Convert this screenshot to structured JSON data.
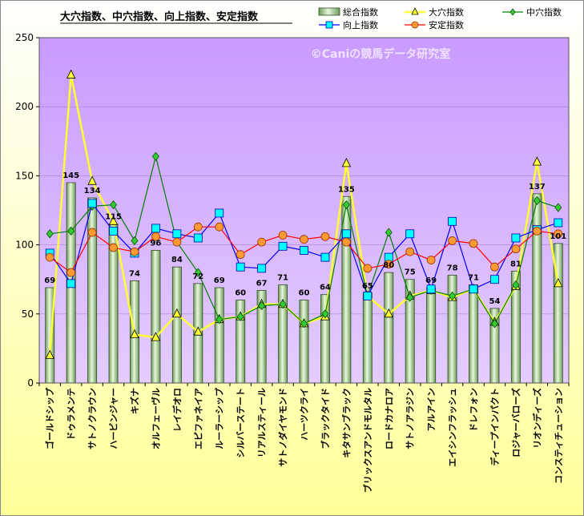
{
  "chart_data": {
    "type": "bar",
    "title": "大穴指数、中穴指数、向上指数、安定指数",
    "watermark": "©Caniの競馬データ研究室",
    "categories": [
      "ゴールドシップ",
      "ドゥラメンテ",
      "サトノクラウン",
      "ハービンジャー",
      "キズナ",
      "オルフェーヴル",
      "レイデオロ",
      "エピファネイア",
      "ルーラーシップ",
      "シルバーステート",
      "リアルスティール",
      "サトノダイヤモンド",
      "ハーツクライ",
      "ブラックタイド",
      "キタサンブラック",
      "ブリックスアンドモルタル",
      "ロードカナロア",
      "サトノアラジン",
      "アルアイン",
      "エイシンフラッシュ",
      "ドレフォン",
      "ディープインパクト",
      "ロジャーバローズ",
      "リオンディーズ",
      "コンスティチューション"
    ],
    "ylim": [
      0,
      250
    ],
    "yticks": [
      0,
      50,
      100,
      150,
      200,
      250
    ],
    "legend_position": "top-right",
    "grid": true,
    "bar_labels": [
      "69",
      "145",
      "134",
      "115",
      "74",
      "96",
      "84",
      "72",
      "69",
      "60",
      "67",
      "71",
      "60",
      "64",
      "135",
      "65",
      "80",
      "75",
      "69",
      "78",
      "71",
      "54",
      "81",
      "137",
      "101"
    ],
    "series": [
      {
        "name": "総合指数",
        "kind": "bar",
        "values": [
          69,
          145,
          134,
          115,
          74,
          96,
          84,
          72,
          69,
          60,
          67,
          71,
          60,
          64,
          135,
          65,
          80,
          75,
          69,
          78,
          71,
          54,
          81,
          137,
          101
        ]
      },
      {
        "name": "大穴指数",
        "kind": "line",
        "color": "#FFFF33",
        "marker": "triangle",
        "values": [
          20,
          223,
          146,
          117,
          35,
          33,
          50,
          37,
          46,
          48,
          57,
          57,
          43,
          48,
          159,
          63,
          50,
          63,
          67,
          62,
          68,
          44,
          70,
          160,
          72
        ]
      },
      {
        "name": "中穴指数",
        "kind": "line",
        "color": "#008000",
        "marker": "diamond",
        "values": [
          108,
          110,
          128,
          129,
          103,
          164,
          102,
          80,
          46,
          48,
          56,
          57,
          43,
          50,
          129,
          63,
          109,
          62,
          67,
          63,
          68,
          43,
          71,
          132,
          127
        ]
      },
      {
        "name": "向上指数",
        "kind": "line",
        "color": "#0000FF",
        "marker": "square",
        "values": [
          94,
          72,
          130,
          110,
          94,
          112,
          108,
          105,
          123,
          84,
          83,
          99,
          96,
          91,
          108,
          63,
          91,
          108,
          68,
          117,
          68,
          75,
          105,
          111,
          116
        ]
      },
      {
        "name": "安定指数",
        "kind": "line",
        "color": "#FF0000",
        "marker": "circle",
        "values": [
          91,
          80,
          109,
          98,
          95,
          106,
          102,
          113,
          113,
          93,
          102,
          107,
          104,
          106,
          102,
          83,
          86,
          95,
          89,
          103,
          101,
          84,
          97,
          110,
          108
        ]
      }
    ]
  }
}
